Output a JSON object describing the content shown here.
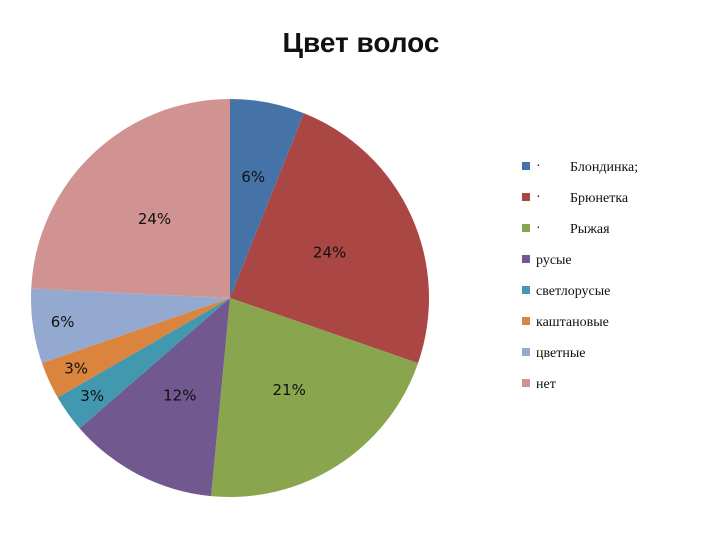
{
  "chart_data": {
    "type": "pie",
    "title": "Цвет волос",
    "legend_position": "right",
    "slices": [
      {
        "label": "Блондинка;",
        "bullet": "·",
        "value": 6,
        "display": "6%",
        "color": "#4572A7"
      },
      {
        "label": "Брюнетка",
        "bullet": "·",
        "value": 24,
        "display": "24%",
        "color": "#AA4643"
      },
      {
        "label": "Рыжая",
        "bullet": "·",
        "value": 21,
        "display": "21%",
        "color": "#89A54E"
      },
      {
        "label": "русые",
        "bullet": "",
        "value": 12,
        "display": "12%",
        "color": "#71588F"
      },
      {
        "label": "светлорусые",
        "bullet": "",
        "value": 3,
        "display": "3%",
        "color": "#4198AF"
      },
      {
        "label": "каштановые",
        "bullet": "",
        "value": 3,
        "display": "3%",
        "color": "#DB843D"
      },
      {
        "label": "цветные",
        "bullet": "",
        "value": 6,
        "display": "6%",
        "color": "#93A9CF"
      },
      {
        "label": "нет",
        "bullet": "",
        "value": 24,
        "display": "24%",
        "color": "#D19392"
      }
    ]
  }
}
